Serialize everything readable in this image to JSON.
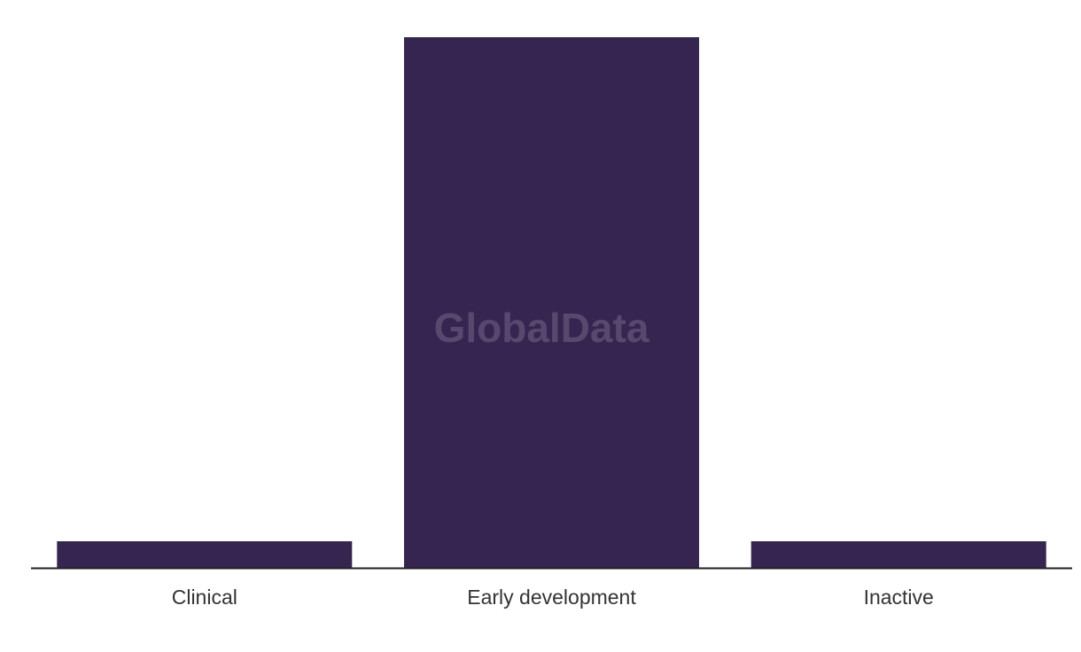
{
  "watermark": "GlobalData",
  "colors": {
    "bar": "#372551",
    "axis": "#222222",
    "label": "#333333"
  },
  "chart_data": {
    "type": "bar",
    "categories": [
      "Clinical",
      "Early development",
      "Inactive"
    ],
    "values": [
      1,
      20,
      1
    ],
    "title": "",
    "xlabel": "",
    "ylabel": "",
    "ylim": [
      0,
      20
    ],
    "grid": false,
    "legend": "none"
  }
}
